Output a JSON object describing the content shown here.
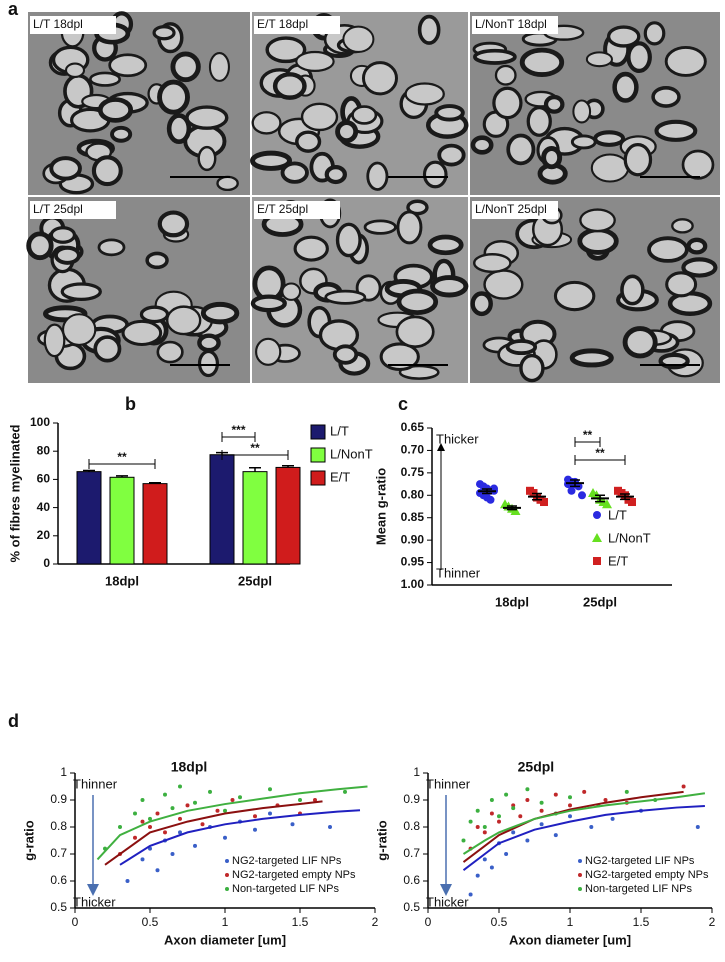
{
  "panel_labels": [
    "a",
    "b",
    "c",
    "d"
  ],
  "micrographs": [
    "L/T 18dpl",
    "E/T 18dpl",
    "L/NonT 18dpl",
    "L/T 25dpl",
    "E/T 25dpl",
    "L/NonT 25dpl"
  ],
  "chart_data": [
    {
      "type": "bar",
      "ylabel": "% of fibres myelinated",
      "categories": [
        "18dpl",
        "25dpl"
      ],
      "series": [
        {
          "name": "L/T",
          "color": "#1c1a6e",
          "values": [
            65.5,
            77.5
          ],
          "errors": [
            0.8,
            1.5
          ]
        },
        {
          "name": "L/NonT",
          "color": "#80ff40",
          "values": [
            61.5,
            65.5
          ],
          "errors": [
            1.0,
            2.8
          ]
        },
        {
          "name": "E/T",
          "color": "#d01c1c",
          "values": [
            57,
            68.5
          ],
          "errors": [
            0.6,
            1.2
          ]
        }
      ],
      "ylim": [
        0,
        100
      ],
      "yticks": [
        0,
        20,
        40,
        60,
        80,
        100
      ],
      "annotations": [
        "**",
        "***",
        "**"
      ]
    },
    {
      "type": "dot",
      "ylabel": "Mean g-ratio",
      "categories": [
        "18dpl",
        "25dpl"
      ],
      "ylim": [
        1.0,
        0.65
      ],
      "yticks": [
        0.65,
        {
          "value": 0.7,
          "label": "0.70"
        },
        0.75,
        {
          "value": 0.8,
          "label": "0.80"
        },
        0.85,
        {
          "value": 0.9,
          "label": "0.90"
        },
        0.95,
        {
          "value": 1.0,
          "label": "1.00"
        }
      ],
      "annotations": [
        "Thicker",
        "Thinner",
        "**",
        "**"
      ],
      "series": [
        {
          "name": "L/T",
          "color": "#2a2ae0",
          "marker": "circle",
          "values": [
            [
              0.775,
              0.78,
              0.785,
              0.79,
              0.79,
              0.795,
              0.8,
              0.805,
              0.81,
              0.785
            ],
            [
              0.765,
              0.77,
              0.775,
              0.78,
              0.8,
              0.775,
              0.79,
              0.77
            ]
          ],
          "means": [
            0.791,
            0.773
          ],
          "errors": [
            0.005,
            0.007
          ]
        },
        {
          "name": "L/NonT",
          "color": "#66e020",
          "marker": "triangle",
          "values": [
            [
              0.82,
              0.825,
              0.83,
              0.835
            ],
            [
              0.795,
              0.8,
              0.81,
              0.815,
              0.82
            ]
          ],
          "means": [
            0.828,
            0.807
          ],
          "errors": [
            0.004,
            0.007
          ]
        },
        {
          "name": "E/T",
          "color": "#d02020",
          "marker": "square",
          "values": [
            [
              0.79,
              0.795,
              0.805,
              0.81,
              0.815
            ],
            [
              0.79,
              0.795,
              0.8,
              0.81,
              0.815
            ]
          ],
          "means": [
            0.803,
            0.803
          ],
          "errors": [
            0.007,
            0.006
          ]
        }
      ]
    },
    {
      "type": "scatter",
      "title": "18dpl",
      "xlabel": "Axon diameter [um]",
      "ylabel": "g-ratio",
      "xlim": [
        0,
        2
      ],
      "xticks": [
        0,
        0.5,
        1,
        1.5,
        2
      ],
      "ylim": [
        0.5,
        1
      ],
      "yticks": [
        0.5,
        0.6,
        0.7,
        0.8,
        0.9,
        1
      ],
      "annotations": [
        "Thinner",
        "Thicker"
      ],
      "series": [
        {
          "name": "NG2-targeted LIF NPs",
          "color": "#3a5fc8",
          "fit_color": "#2020c0",
          "x": [
            0.35,
            0.45,
            0.5,
            0.55,
            0.6,
            0.65,
            0.7,
            0.8,
            0.9,
            1.0,
            1.1,
            1.2,
            1.3,
            1.45,
            1.7
          ],
          "y": [
            0.6,
            0.68,
            0.72,
            0.64,
            0.75,
            0.7,
            0.78,
            0.73,
            0.8,
            0.76,
            0.82,
            0.79,
            0.85,
            0.81,
            0.8
          ],
          "fit": {
            "x": [
              0.3,
              0.5,
              0.75,
              1,
              1.25,
              1.5,
              1.75,
              1.9
            ],
            "y": [
              0.66,
              0.73,
              0.78,
              0.81,
              0.83,
              0.845,
              0.857,
              0.862
            ]
          }
        },
        {
          "name": "NG2-targeted empty NPs",
          "color": "#c0282a",
          "fit_color": "#8b1010",
          "x": [
            0.3,
            0.4,
            0.45,
            0.5,
            0.55,
            0.6,
            0.7,
            0.75,
            0.85,
            0.95,
            1.05,
            1.2,
            1.35,
            1.5,
            1.6
          ],
          "y": [
            0.7,
            0.76,
            0.82,
            0.8,
            0.85,
            0.78,
            0.83,
            0.88,
            0.81,
            0.86,
            0.9,
            0.84,
            0.88,
            0.85,
            0.9
          ],
          "fit": {
            "x": [
              0.2,
              0.5,
              0.75,
              1,
              1.25,
              1.5,
              1.65
            ],
            "y": [
              0.66,
              0.78,
              0.82,
              0.85,
              0.87,
              0.885,
              0.895
            ]
          }
        },
        {
          "name": "Non-targeted LIF NPs",
          "color": "#3cb040",
          "fit_color": "#40b040",
          "x": [
            0.2,
            0.3,
            0.4,
            0.45,
            0.5,
            0.6,
            0.65,
            0.7,
            0.8,
            0.9,
            1.0,
            1.1,
            1.3,
            1.5,
            1.8
          ],
          "y": [
            0.72,
            0.8,
            0.85,
            0.9,
            0.83,
            0.92,
            0.87,
            0.95,
            0.89,
            0.93,
            0.86,
            0.91,
            0.94,
            0.9,
            0.93
          ],
          "fit": {
            "x": [
              0.15,
              0.3,
              0.5,
              0.75,
              1,
              1.25,
              1.5,
              1.75,
              1.95
            ],
            "y": [
              0.68,
              0.77,
              0.82,
              0.86,
              0.885,
              0.905,
              0.925,
              0.94,
              0.95
            ]
          }
        }
      ]
    },
    {
      "type": "scatter",
      "title": "25dpl",
      "xlabel": "Axon diameter [um]",
      "ylabel": "g-ratio",
      "xlim": [
        0,
        2
      ],
      "xticks": [
        0,
        0.5,
        1,
        1.5,
        2
      ],
      "ylim": [
        0.5,
        1
      ],
      "yticks": [
        0.5,
        0.6,
        0.7,
        0.8,
        0.9,
        1
      ],
      "annotations": [
        "Thinner",
        "Thicker"
      ],
      "series": [
        {
          "name": "NG2-targeted LIF NPs",
          "color": "#3a5fc8",
          "fit_color": "#2020c0",
          "x": [
            0.3,
            0.35,
            0.4,
            0.45,
            0.5,
            0.55,
            0.6,
            0.7,
            0.8,
            0.9,
            1.0,
            1.15,
            1.3,
            1.5,
            1.9
          ],
          "y": [
            0.55,
            0.62,
            0.68,
            0.65,
            0.74,
            0.7,
            0.78,
            0.75,
            0.81,
            0.77,
            0.84,
            0.8,
            0.83,
            0.86,
            0.8
          ],
          "fit": {
            "x": [
              0.25,
              0.4,
              0.5,
              0.75,
              1,
              1.25,
              1.5,
              1.75,
              1.95
            ],
            "y": [
              0.64,
              0.7,
              0.74,
              0.79,
              0.82,
              0.845,
              0.86,
              0.872,
              0.878
            ]
          }
        },
        {
          "name": "NG2-targeted empty NPs",
          "color": "#c0282a",
          "fit_color": "#8b1010",
          "x": [
            0.3,
            0.35,
            0.4,
            0.45,
            0.5,
            0.6,
            0.65,
            0.7,
            0.8,
            0.9,
            1.0,
            1.1,
            1.25,
            1.4,
            1.8
          ],
          "y": [
            0.72,
            0.8,
            0.78,
            0.85,
            0.82,
            0.88,
            0.84,
            0.9,
            0.86,
            0.92,
            0.88,
            0.93,
            0.9,
            0.89,
            0.95
          ],
          "fit": {
            "x": [
              0.25,
              0.4,
              0.5,
              0.75,
              1,
              1.25,
              1.5,
              1.8
            ],
            "y": [
              0.67,
              0.73,
              0.77,
              0.83,
              0.865,
              0.89,
              0.91,
              0.93
            ]
          }
        },
        {
          "name": "Non-targeted LIF NPs",
          "color": "#3cb040",
          "fit_color": "#40b040",
          "x": [
            0.25,
            0.3,
            0.35,
            0.4,
            0.45,
            0.5,
            0.55,
            0.6,
            0.7,
            0.8,
            0.9,
            1.0,
            1.2,
            1.4,
            1.6
          ],
          "y": [
            0.75,
            0.82,
            0.86,
            0.8,
            0.9,
            0.84,
            0.92,
            0.87,
            0.94,
            0.89,
            0.85,
            0.91,
            0.88,
            0.93,
            0.9
          ],
          "fit": {
            "x": [
              0.25,
              0.4,
              0.5,
              0.75,
              1,
              1.25,
              1.5,
              1.75,
              1.95
            ],
            "y": [
              0.7,
              0.75,
              0.78,
              0.83,
              0.86,
              0.88,
              0.895,
              0.91,
              0.925
            ]
          }
        }
      ]
    }
  ]
}
